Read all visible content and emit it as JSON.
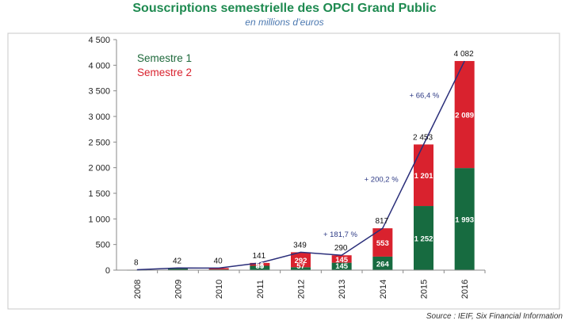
{
  "title": "Souscriptions semestrielle des OPCI Grand Public",
  "subtitle": "en millions d’euros",
  "source": "Source : IEIF,  Six Financial Information",
  "colors": {
    "s1": "#176b40",
    "s2": "#d9222e",
    "line": "#2b2f7a",
    "legend_s1": "#1f6a3c",
    "legend_s2": "#d9222e"
  },
  "chart_data": {
    "type": "bar",
    "stacked": true,
    "categories": [
      "2008",
      "2009",
      "2010",
      "2011",
      "2012",
      "2013",
      "2014",
      "2015",
      "2016"
    ],
    "series": [
      {
        "name": "Semestre 1",
        "values": [
          4,
          32,
          14,
          85,
          57,
          145,
          264,
          1252,
          1993
        ],
        "labels": [
          "",
          "",
          "",
          "85",
          "57",
          "145",
          "264",
          "1 252",
          "1 993"
        ]
      },
      {
        "name": "Semestre 2",
        "values": [
          4,
          10,
          26,
          56,
          292,
          145,
          553,
          1201,
          2089
        ],
        "labels": [
          "",
          "",
          "",
          "56",
          "292",
          "145",
          "553",
          "1 201",
          "2 089"
        ]
      }
    ],
    "totals": [
      8,
      42,
      40,
      141,
      349,
      290,
      817,
      2453,
      4082
    ],
    "total_labels": [
      "8",
      "42",
      "40",
      "141",
      "349",
      "290",
      "817",
      "2 453",
      "4 082"
    ],
    "growth_annotations": [
      {
        "after": "2013",
        "text": "+ 181,7 %"
      },
      {
        "after": "2014",
        "text": "+ 200,2 %"
      },
      {
        "after": "2015",
        "text": "+ 66,4 %"
      }
    ],
    "ylim": [
      0,
      4500
    ],
    "yticks": [
      0,
      500,
      1000,
      1500,
      2000,
      2500,
      3000,
      3500,
      4000,
      4500
    ],
    "ytick_labels": [
      "0",
      "500",
      "1 000",
      "1 500",
      "2 000",
      "2 500",
      "3 000",
      "3 500",
      "4 000",
      "4 500"
    ],
    "legend_position": "top-left"
  }
}
